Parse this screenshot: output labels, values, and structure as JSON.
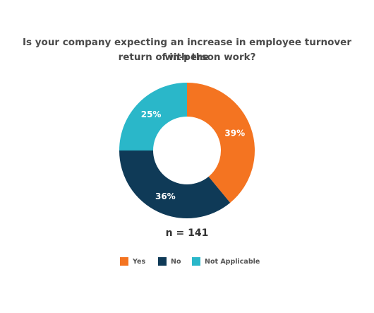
{
  "chart_data": {
    "type": "pie",
    "title_line1": "Is your company expecting an increase in employee turnover with the",
    "title_line2": "return of in-person work?",
    "categories": [
      "Yes",
      "No",
      "Not Applicable"
    ],
    "values": [
      39,
      36,
      25
    ],
    "unit": "%",
    "slice_labels": [
      "39%",
      "36%",
      "25%"
    ],
    "colors": [
      "#f47421",
      "#0f3a57",
      "#2ab7c9"
    ],
    "legend_position": "bottom",
    "annotation": "n = 141",
    "hole": "donut"
  }
}
